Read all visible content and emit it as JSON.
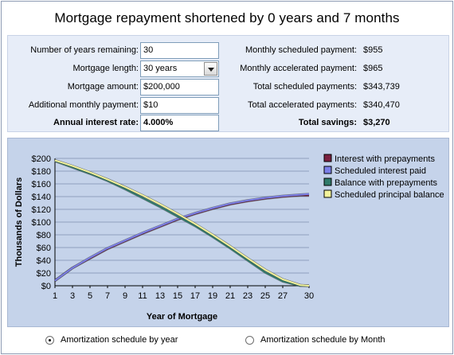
{
  "title": "Mortgage repayment shortened by 0 years and 7 months",
  "form": {
    "years_remaining_label": "Number of years remaining:",
    "years_remaining_value": "30",
    "length_label": "Mortgage length:",
    "length_value": "30 years",
    "amount_label": "Mortgage amount:",
    "amount_value": "$200,000",
    "additional_label": "Additional monthly payment:",
    "additional_value": "$10",
    "rate_label": "Annual interest rate:",
    "rate_value": "4.000%"
  },
  "summary": {
    "monthly_scheduled_label": "Monthly scheduled payment:",
    "monthly_scheduled_value": "$955",
    "monthly_accelerated_label": "Monthly accelerated payment:",
    "monthly_accelerated_value": "$965",
    "total_scheduled_label": "Total scheduled payments:",
    "total_scheduled_value": "$343,739",
    "total_accelerated_label": "Total accelerated payments:",
    "total_accelerated_value": "$340,470",
    "total_savings_label": "Total savings:",
    "total_savings_value": "$3,270"
  },
  "options": {
    "by_year_label": "Amortization schedule by year",
    "by_month_label": "Amortization schedule by Month",
    "selected": "by_year"
  },
  "chart_data": {
    "type": "line",
    "xlabel": "Year of Mortgage",
    "ylabel": "Thousands of Dollars",
    "xlim": [
      1,
      30
    ],
    "ylim": [
      0,
      200
    ],
    "x_ticks": [
      1,
      3,
      5,
      7,
      9,
      11,
      13,
      15,
      17,
      19,
      21,
      23,
      25,
      27,
      30
    ],
    "y_ticks": [
      "$0",
      "$20",
      "$40",
      "$60",
      "$80",
      "$100",
      "$120",
      "$140",
      "$160",
      "$180",
      "$200"
    ],
    "x": [
      1,
      3,
      5,
      7,
      9,
      11,
      13,
      15,
      17,
      19,
      21,
      23,
      25,
      27,
      29,
      30
    ],
    "legend_position": "right",
    "grid": "horizontal",
    "series": [
      {
        "name": "Interest with prepayments",
        "color": "#7a1f3f",
        "values": [
          8,
          28,
          43,
          58,
          70,
          82,
          93,
          104,
          113,
          121,
          128,
          133,
          137,
          140,
          142,
          142
        ]
      },
      {
        "name": "Scheduled interest paid",
        "color": "#7b7fe8",
        "values": [
          8,
          28,
          44,
          59,
          71,
          83,
          94,
          105,
          114,
          122,
          129,
          134,
          138,
          141,
          143,
          144
        ]
      },
      {
        "name": "Balance with prepayments",
        "color": "#2f7a6a",
        "values": [
          196,
          186,
          176,
          165,
          152,
          138,
          124,
          109,
          94,
          77,
          59,
          40,
          21,
          7,
          0,
          0
        ]
      },
      {
        "name": "Scheduled principal balance",
        "color": "#f2f29a",
        "values": [
          197,
          188,
          178,
          167,
          155,
          142,
          128,
          113,
          97,
          80,
          62,
          43,
          25,
          10,
          1,
          0
        ]
      }
    ]
  }
}
